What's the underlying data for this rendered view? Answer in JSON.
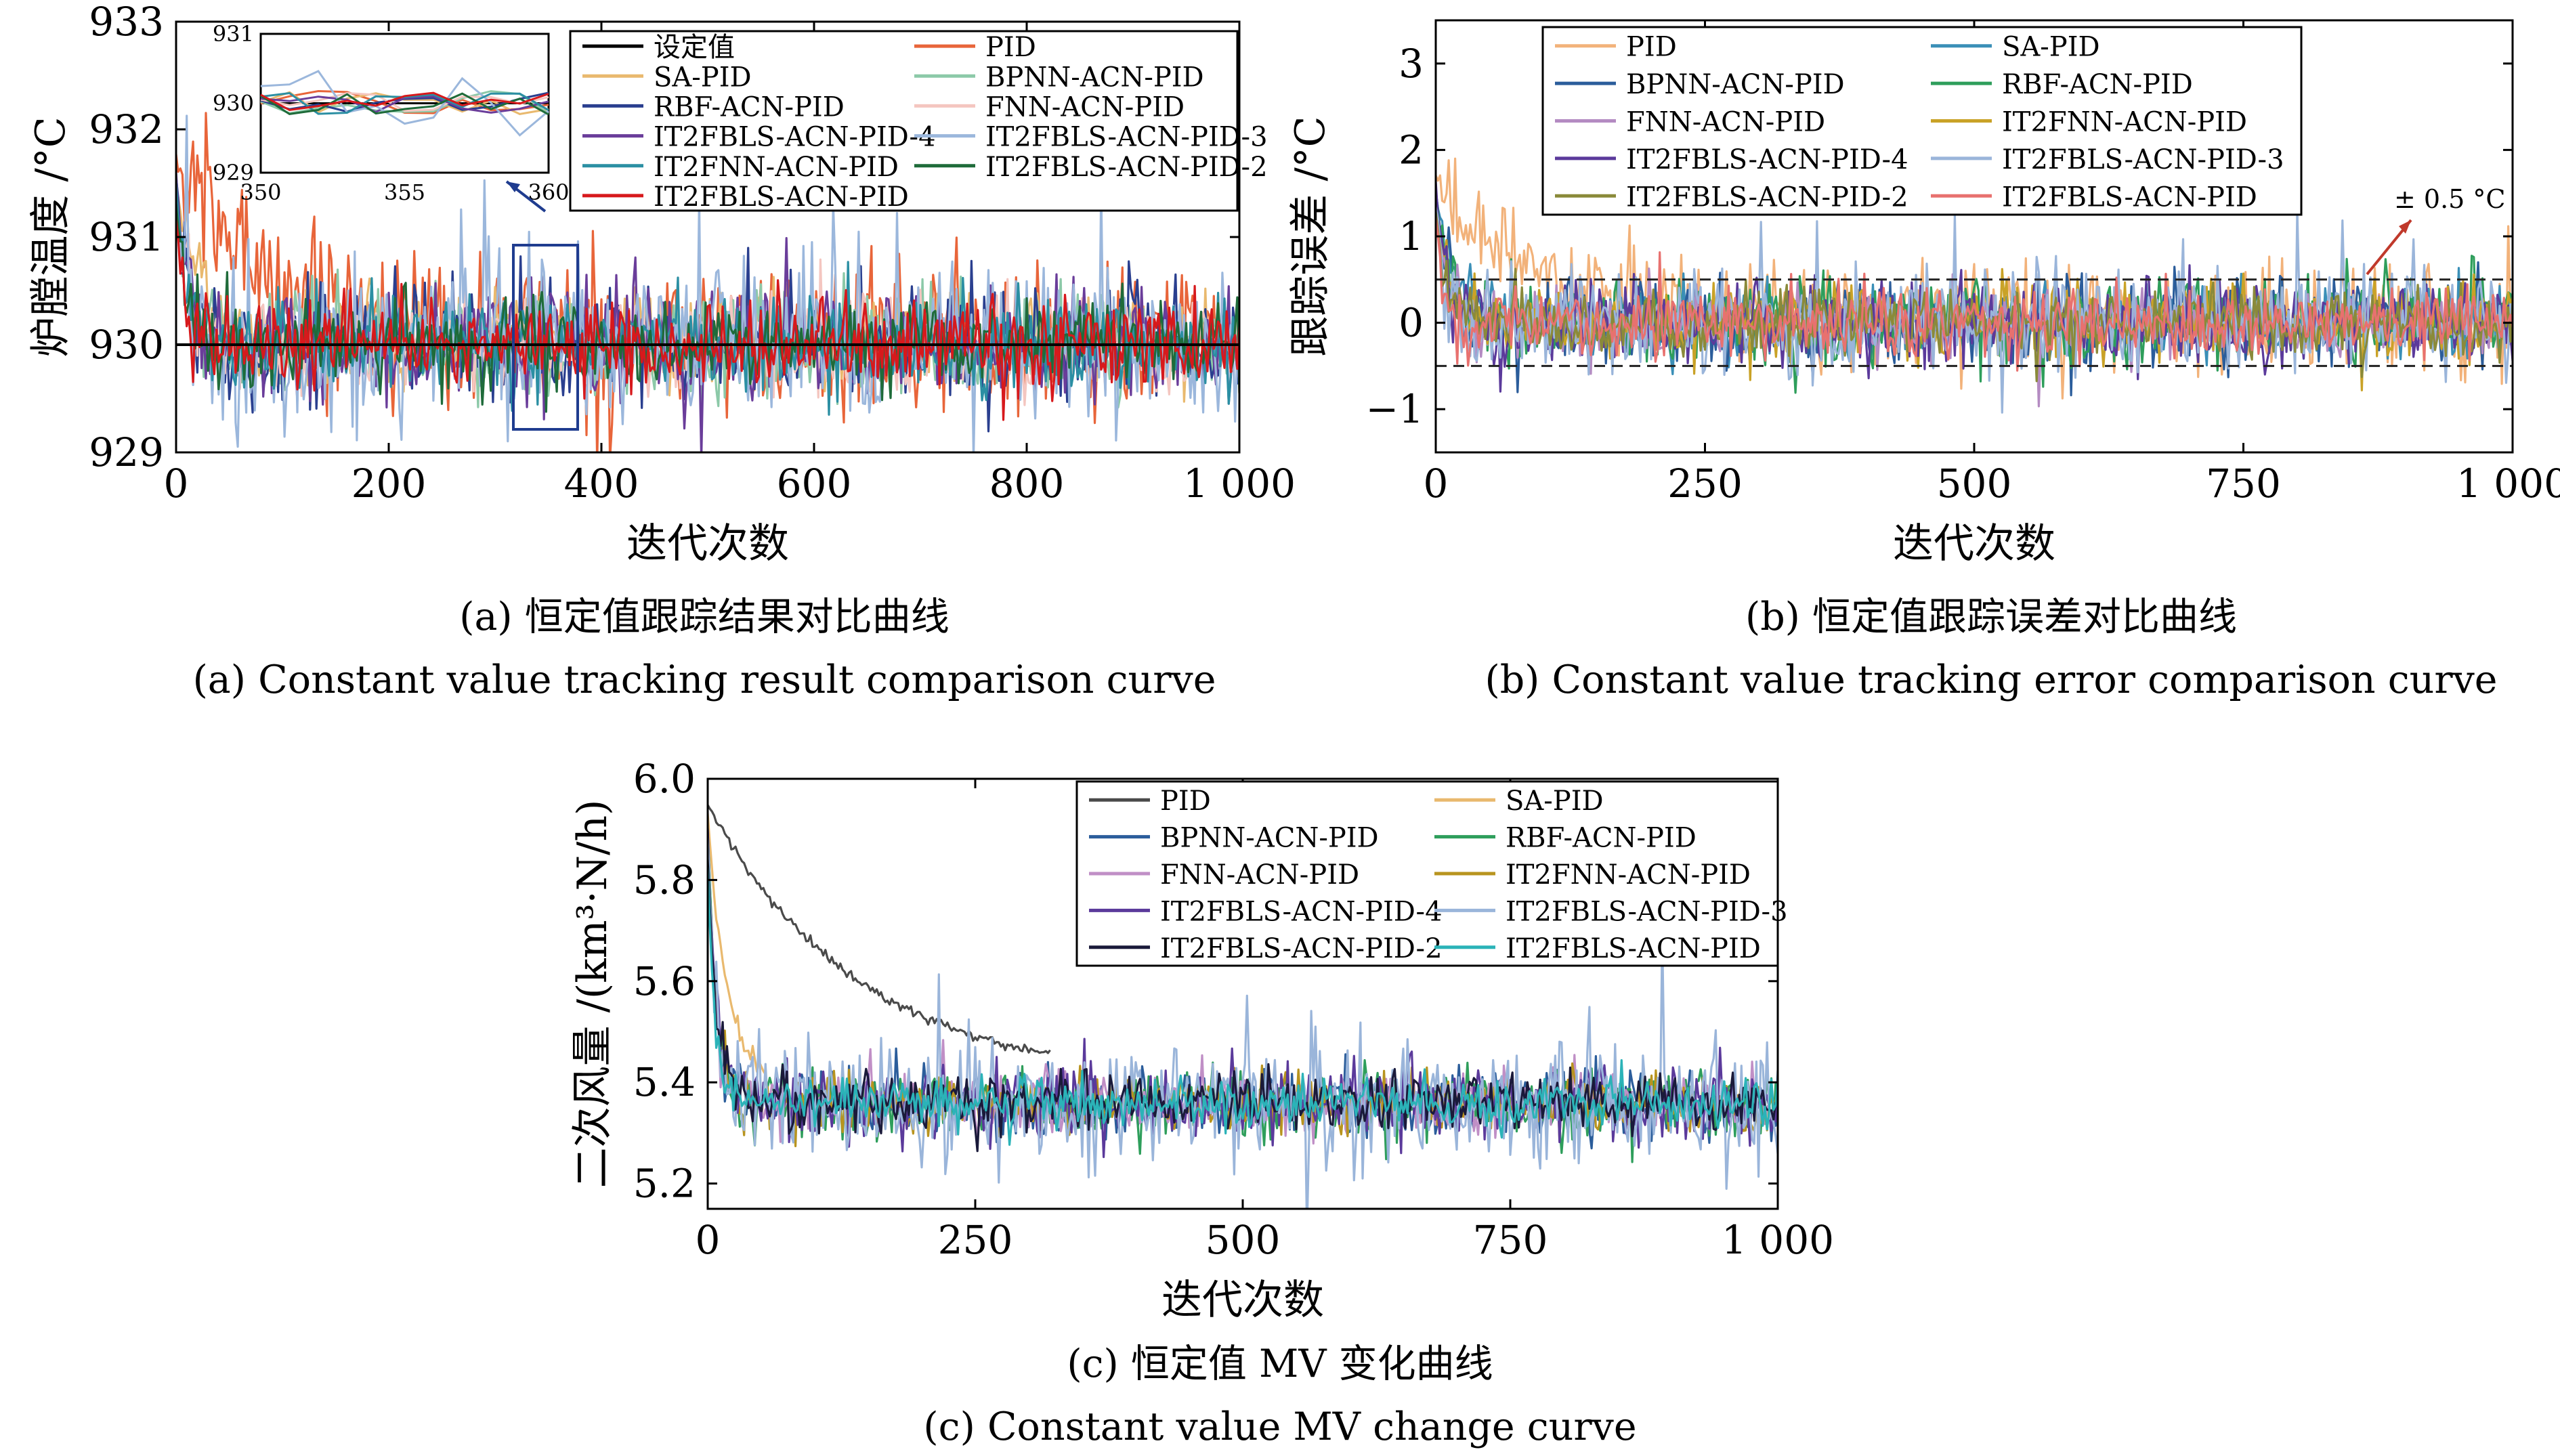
{
  "chart_data": [
    {
      "id": "a",
      "type": "line",
      "xlabel": "迭代次数",
      "ylabel": "炉膛温度 /°C",
      "xlim": [
        0,
        1000
      ],
      "ylim": [
        929,
        933
      ],
      "xticks": [
        "0",
        "200",
        "400",
        "600",
        "800",
        "1 000"
      ],
      "yticks": [
        "929",
        "930",
        "931",
        "932",
        "933"
      ],
      "legend_position": "top-right",
      "legend": [
        "设定值",
        "PID",
        "SA-PID",
        "BPNN-ACN-PID",
        "RBF-ACN-PID",
        "FNN-ACN-PID",
        "IT2FBLS-ACN-PID-4",
        "IT2FBLS-ACN-PID-3",
        "IT2FNN-ACN-PID",
        "IT2FBLS-ACN-PID-2",
        "IT2FBLS-ACN-PID"
      ],
      "series": [
        {
          "name": "设定值",
          "color": "#000000",
          "kind": "setpoint",
          "value": 930
        },
        {
          "name": "PID",
          "color": "#e8653a",
          "start": 931.7,
          "settle": 930.05,
          "tau": 90,
          "noise": 0.35
        },
        {
          "name": "SA-PID",
          "color": "#e9b96e",
          "start": 931.5,
          "settle": 930.05,
          "tau": 25,
          "noise": 0.22
        },
        {
          "name": "BPNN-ACN-PID",
          "color": "#8cc9a8",
          "start": 931.4,
          "settle": 930.0,
          "tau": 12,
          "noise": 0.25
        },
        {
          "name": "RBF-ACN-PID",
          "color": "#2a3f8f",
          "start": 931.6,
          "settle": 930.0,
          "tau": 10,
          "noise": 0.28
        },
        {
          "name": "FNN-ACN-PID",
          "color": "#f4c6c0",
          "start": 931.3,
          "settle": 930.0,
          "tau": 12,
          "noise": 0.22
        },
        {
          "name": "IT2FBLS-ACN-PID-4",
          "color": "#6a3d9a",
          "start": 931.6,
          "settle": 930.0,
          "tau": 10,
          "noise": 0.25
        },
        {
          "name": "IT2FBLS-ACN-PID-3",
          "color": "#9bb7dc",
          "start": 931.4,
          "settle": 930.0,
          "tau": 10,
          "noise": 0.35,
          "spikes": 1.1
        },
        {
          "name": "IT2FNN-ACN-PID",
          "color": "#2b8fa3",
          "start": 931.5,
          "settle": 930.0,
          "tau": 10,
          "noise": 0.22
        },
        {
          "name": "IT2FBLS-ACN-PID-2",
          "color": "#1f6b3a",
          "start": 931.3,
          "settle": 930.0,
          "tau": 10,
          "noise": 0.2
        },
        {
          "name": "IT2FBLS-ACN-PID",
          "color": "#d7191c",
          "start": 931.2,
          "settle": 930.0,
          "tau": 8,
          "noise": 0.2
        }
      ],
      "inset": {
        "xlim": [
          350,
          360
        ],
        "ylim": [
          929,
          931
        ],
        "xticks": [
          "350",
          "355",
          "360"
        ],
        "yticks": [
          "929",
          "930",
          "931"
        ]
      }
    },
    {
      "id": "b",
      "type": "line",
      "xlabel": "迭代次数",
      "ylabel": "跟踪误差 /°C",
      "xlim": [
        0,
        1000
      ],
      "ylim": [
        -1.5,
        3.5
      ],
      "xticks": [
        "0",
        "250",
        "500",
        "750",
        "1 000"
      ],
      "yticks": [
        "−1",
        "0",
        "1",
        "2",
        "3"
      ],
      "legend_position": "top",
      "annotation": "± 0.5 °C",
      "threshold_lines": [
        0.5,
        -0.5
      ],
      "legend": [
        "PID",
        "SA-PID",
        "BPNN-ACN-PID",
        "RBF-ACN-PID",
        "FNN-ACN-PID",
        "IT2FNN-ACN-PID",
        "IT2FBLS-ACN-PID-4",
        "IT2FBLS-ACN-PID-3",
        "IT2FBLS-ACN-PID-2",
        "IT2FBLS-ACN-PID"
      ],
      "series": [
        {
          "name": "PID",
          "color": "#f2b27a",
          "start": 1.75,
          "settle": 0.05,
          "tau": 90,
          "noise": 0.3
        },
        {
          "name": "SA-PID",
          "color": "#3a8fb7",
          "start": 1.5,
          "settle": 0.0,
          "tau": 20,
          "noise": 0.2
        },
        {
          "name": "BPNN-ACN-PID",
          "color": "#2b5d9b",
          "start": 1.6,
          "settle": 0.0,
          "tau": 10,
          "noise": 0.25
        },
        {
          "name": "RBF-ACN-PID",
          "color": "#2e9e5b",
          "start": 1.5,
          "settle": 0.0,
          "tau": 10,
          "noise": 0.25
        },
        {
          "name": "FNN-ACN-PID",
          "color": "#b48bc2",
          "start": 1.3,
          "settle": 0.0,
          "tau": 10,
          "noise": 0.2
        },
        {
          "name": "IT2FNN-ACN-PID",
          "color": "#c9a227",
          "start": 1.4,
          "settle": 0.0,
          "tau": 10,
          "noise": 0.22
        },
        {
          "name": "IT2FBLS-ACN-PID-4",
          "color": "#5b3a9b",
          "start": 1.6,
          "settle": 0.0,
          "tau": 10,
          "noise": 0.25
        },
        {
          "name": "IT2FBLS-ACN-PID-3",
          "color": "#9ab5da",
          "start": 1.4,
          "settle": 0.0,
          "tau": 10,
          "noise": 0.3,
          "spikes": 1.0
        },
        {
          "name": "IT2FBLS-ACN-PID-2",
          "color": "#8a8a3a",
          "start": 1.3,
          "settle": 0.0,
          "tau": 10,
          "noise": 0.2
        },
        {
          "name": "IT2FBLS-ACN-PID",
          "color": "#e8716f",
          "start": 1.2,
          "settle": 0.0,
          "tau": 8,
          "noise": 0.2
        }
      ]
    },
    {
      "id": "c",
      "type": "line",
      "xlabel": "迭代次数",
      "ylabel": "二次风量 /(km³·N/h)",
      "xlim": [
        0,
        1000
      ],
      "ylim": [
        5.15,
        6.0
      ],
      "xticks": [
        "0",
        "250",
        "500",
        "750",
        "1 000"
      ],
      "yticks": [
        "5.2",
        "5.4",
        "5.6",
        "5.8",
        "6.0"
      ],
      "legend_position": "top-right",
      "legend": [
        "PID",
        "SA-PID",
        "BPNN-ACN-PID",
        "RBF-ACN-PID",
        "FNN-ACN-PID",
        "IT2FNN-ACN-PID",
        "IT2FBLS-ACN-PID-4",
        "IT2FBLS-ACN-PID-3",
        "IT2FBLS-ACN-PID-2",
        "IT2FBLS-ACN-PID"
      ],
      "series": [
        {
          "name": "PID",
          "color": "#4a4a4a",
          "start": 5.95,
          "settle": 5.4,
          "tau": 140,
          "noise": 0.005,
          "end": 320
        },
        {
          "name": "SA-PID",
          "color": "#e9b96e",
          "start": 5.93,
          "settle": 5.4,
          "tau": 18,
          "noise": 0.01,
          "end": 55
        },
        {
          "name": "BPNN-ACN-PID",
          "color": "#2b5d9b",
          "start": 5.9,
          "settle": 5.36,
          "tau": 8,
          "noise": 0.035
        },
        {
          "name": "RBF-ACN-PID",
          "color": "#2e9e5b",
          "start": 5.9,
          "settle": 5.36,
          "tau": 8,
          "noise": 0.035
        },
        {
          "name": "FNN-ACN-PID",
          "color": "#c08fc6",
          "start": 5.85,
          "settle": 5.36,
          "tau": 8,
          "noise": 0.03
        },
        {
          "name": "IT2FNN-ACN-PID",
          "color": "#b8941f",
          "start": 5.85,
          "settle": 5.36,
          "tau": 8,
          "noise": 0.03
        },
        {
          "name": "IT2FBLS-ACN-PID-4",
          "color": "#5b3a9b",
          "start": 5.9,
          "settle": 5.36,
          "tau": 8,
          "noise": 0.035
        },
        {
          "name": "IT2FBLS-ACN-PID-3",
          "color": "#9ab5da",
          "start": 5.88,
          "settle": 5.36,
          "tau": 8,
          "noise": 0.06,
          "spikes": 0.2
        },
        {
          "name": "IT2FBLS-ACN-PID-2",
          "color": "#1a1a3a",
          "start": 5.85,
          "settle": 5.36,
          "tau": 8,
          "noise": 0.03
        },
        {
          "name": "IT2FBLS-ACN-PID",
          "color": "#2bb3b8",
          "start": 5.82,
          "settle": 5.36,
          "tau": 7,
          "noise": 0.025
        }
      ]
    }
  ],
  "captions": {
    "a_cn": "(a) 恒定值跟踪结果对比曲线",
    "a_en": "(a) Constant value tracking result comparison curve",
    "b_cn": "(b) 恒定值跟踪误差对比曲线",
    "b_en": "(b) Constant value tracking error comparison curve",
    "c_cn": "(c) 恒定值 MV 变化曲线",
    "c_en": "(c) Constant value MV change curve"
  }
}
